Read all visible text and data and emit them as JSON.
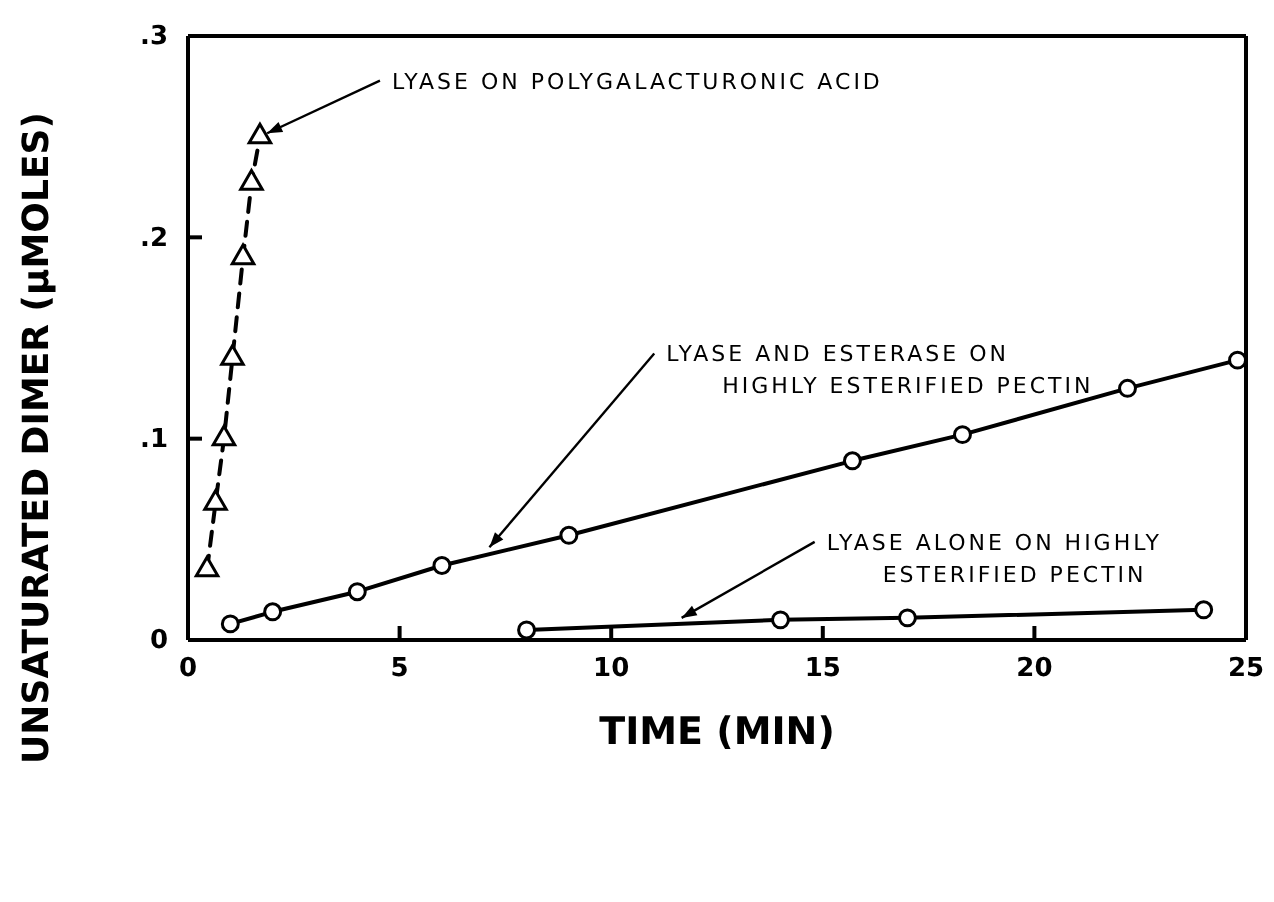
{
  "chart_data": {
    "type": "line",
    "xlabel": "TIME (MIN)",
    "ylabel": "UNSATURATED DIMER (μMOLES)",
    "xlim": [
      0,
      25
    ],
    "xticks": [
      0,
      5,
      10,
      15,
      20,
      25
    ],
    "ylim": [
      0,
      0.3
    ],
    "yticks": [
      0,
      {
        "value": 0.1,
        "label": ".1"
      },
      {
        "value": 0.2,
        "label": ".2"
      },
      {
        "value": 0.3,
        "label": ".3"
      }
    ],
    "grid": false,
    "series": [
      {
        "color": "#000000",
        "marker": "triangle",
        "line_style": "dashed",
        "x": [
          0.45,
          0.65,
          0.85,
          1.05,
          1.3,
          1.5,
          1.7
        ],
        "values": [
          0.035,
          0.068,
          0.1,
          0.14,
          0.19,
          0.227,
          0.25
        ]
      },
      {
        "color": "#000000",
        "marker": "circle",
        "line_style": "solid",
        "x": [
          1,
          2,
          4,
          6,
          9,
          15.7,
          18.3,
          22.2,
          24.8
        ],
        "values": [
          0.008,
          0.014,
          0.024,
          0.037,
          0.052,
          0.089,
          0.102,
          0.125,
          0.139
        ]
      },
      {
        "color": "#000000",
        "marker": "circle",
        "line_style": "solid",
        "x": [
          8,
          14,
          17,
          24
        ],
        "values": [
          0.005,
          0.01,
          0.011,
          0.015
        ]
      }
    ],
    "annotations": [
      {
        "text": "LYASE ON POLYGALACTURONIC ACID",
        "x": 1.7,
        "y": 0.25
      },
      {
        "text": "LYASE AND ESTERASE ON\nHIGHLY ESTERIFIED PECTIN",
        "x": 7,
        "y": 0.043
      },
      {
        "text": "LYASE ALONE ON HIGHLY\nESTERIFIED PECTIN",
        "x": 11.5,
        "y": 0.009
      }
    ]
  }
}
